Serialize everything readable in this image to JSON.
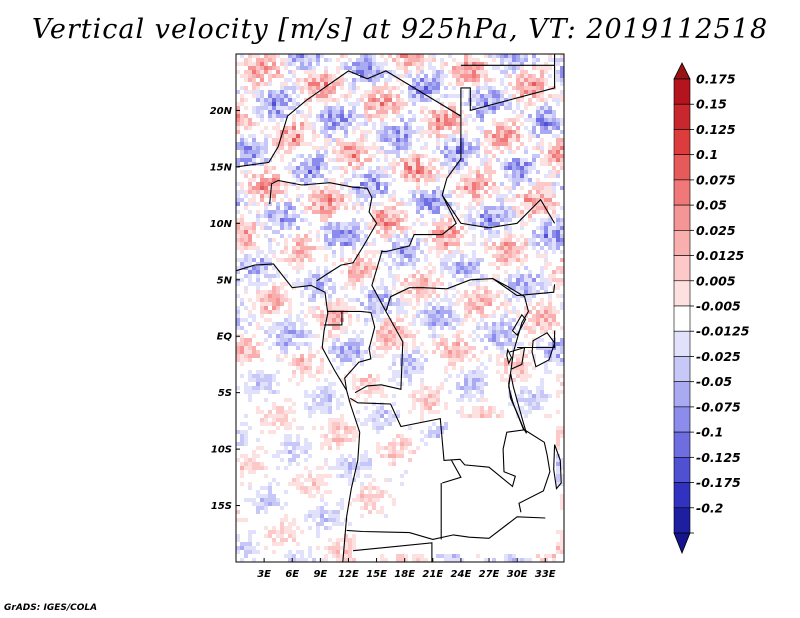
{
  "title": "Vertical velocity [m/s] at 925hPa, VT: 2019112518",
  "credit": "GrADS: IGES/COLA",
  "map": {
    "lon_range": [
      0,
      35
    ],
    "lat_range": [
      -20,
      25
    ],
    "lon_ticks": [
      {
        "lon": 3,
        "label": "3E"
      },
      {
        "lon": 6,
        "label": "6E"
      },
      {
        "lon": 9,
        "label": "9E"
      },
      {
        "lon": 12,
        "label": "12E"
      },
      {
        "lon": 15,
        "label": "15E"
      },
      {
        "lon": 18,
        "label": "18E"
      },
      {
        "lon": 21,
        "label": "21E"
      },
      {
        "lon": 24,
        "label": "24E"
      },
      {
        "lon": 27,
        "label": "27E"
      },
      {
        "lon": 30,
        "label": "30E"
      },
      {
        "lon": 33,
        "label": "33E"
      }
    ],
    "lat_ticks": [
      {
        "lat": 20,
        "label": "20N"
      },
      {
        "lat": 15,
        "label": "15N"
      },
      {
        "lat": 10,
        "label": "10N"
      },
      {
        "lat": 5,
        "label": "5N"
      },
      {
        "lat": 0,
        "label": "EQ"
      },
      {
        "lat": -5,
        "label": "5S"
      },
      {
        "lat": -10,
        "label": "10S"
      },
      {
        "lat": -15,
        "label": "15S"
      }
    ]
  },
  "colorbar": {
    "levels": [
      {
        "label": "0.175",
        "color": "#b4141e"
      },
      {
        "label": "0.15",
        "color": "#c8282d"
      },
      {
        "label": "0.125",
        "color": "#dc3c3c"
      },
      {
        "label": "0.1",
        "color": "#e65a5a"
      },
      {
        "label": "0.075",
        "color": "#f07878"
      },
      {
        "label": "0.05",
        "color": "#f59696"
      },
      {
        "label": "0.025",
        "color": "#faafaf"
      },
      {
        "label": "0.0125",
        "color": "#fcc8c8"
      },
      {
        "label": "0.005",
        "color": "#fde0e0"
      },
      {
        "label": "-0.005",
        "color": "#ffffff"
      },
      {
        "label": "-0.0125",
        "color": "#e1e1fb"
      },
      {
        "label": "-0.025",
        "color": "#c8c8f8"
      },
      {
        "label": "-0.05",
        "color": "#aaaaf2"
      },
      {
        "label": "-0.075",
        "color": "#8c8cec"
      },
      {
        "label": "-0.1",
        "color": "#6e6ee0"
      },
      {
        "label": "-0.125",
        "color": "#5050d2"
      },
      {
        "label": "-0.175",
        "color": "#3232c0"
      },
      {
        "label": "-0.2",
        "color": "#1e1ea0"
      }
    ],
    "over_color": "#961414",
    "under_color": "#14148c"
  }
}
